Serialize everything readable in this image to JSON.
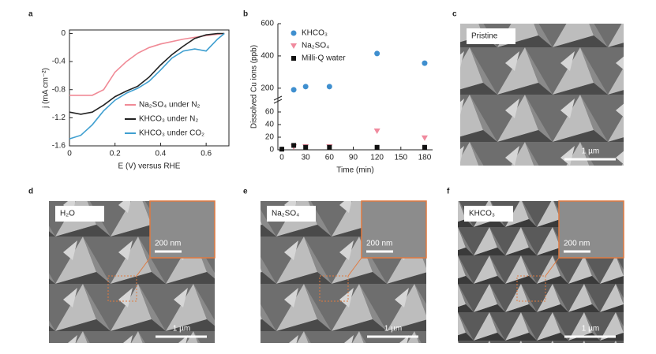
{
  "chart_data": [
    {
      "type": "line",
      "panel_label": "a",
      "xlabel": "E (V) versus RHE",
      "ylabel": "j (mA cm⁻²)",
      "xlim": [
        0,
        0.7
      ],
      "ylim": [
        -1.6,
        0.05
      ],
      "xticks": [
        0,
        0.2,
        0.4,
        0.6
      ],
      "yticks": [
        0,
        -0.4,
        -0.8,
        -1.2,
        -1.6
      ],
      "legend": "lower right",
      "series": [
        {
          "name": "Na₂SO₄ under N₂",
          "color": "#f08a96",
          "x": [
            0,
            0.1,
            0.15,
            0.2,
            0.25,
            0.3,
            0.35,
            0.4,
            0.5,
            0.6,
            0.68
          ],
          "values": [
            -0.88,
            -0.88,
            -0.8,
            -0.55,
            -0.4,
            -0.28,
            -0.2,
            -0.15,
            -0.08,
            -0.03,
            0
          ]
        },
        {
          "name": "KHCO₃ under N₂",
          "color": "#222222",
          "x": [
            0,
            0.05,
            0.1,
            0.15,
            0.2,
            0.25,
            0.3,
            0.35,
            0.4,
            0.45,
            0.5,
            0.55,
            0.6,
            0.65,
            0.68
          ],
          "values": [
            -1.12,
            -1.15,
            -1.12,
            -1.02,
            -0.9,
            -0.82,
            -0.75,
            -0.62,
            -0.45,
            -0.3,
            -0.18,
            -0.07,
            -0.02,
            0,
            0
          ]
        },
        {
          "name": "KHCO₃ under CO₂",
          "color": "#3f9fd0",
          "x": [
            0,
            0.05,
            0.1,
            0.15,
            0.2,
            0.25,
            0.3,
            0.35,
            0.4,
            0.45,
            0.5,
            0.55,
            0.6,
            0.65,
            0.68
          ],
          "values": [
            -1.5,
            -1.45,
            -1.3,
            -1.1,
            -0.95,
            -0.85,
            -0.78,
            -0.68,
            -0.52,
            -0.35,
            -0.25,
            -0.22,
            -0.25,
            -0.08,
            0
          ]
        }
      ]
    },
    {
      "type": "scatter",
      "panel_label": "b",
      "xlabel": "Time (min)",
      "ylabel": "Dissolved Cu ions (ppb)",
      "xlim": [
        -5,
        190
      ],
      "ylim": [
        0,
        600
      ],
      "ybreak": [
        70,
        170
      ],
      "xticks": [
        0,
        30,
        60,
        90,
        120,
        150,
        180
      ],
      "yticks": [
        0,
        20,
        40,
        60,
        200,
        400,
        600
      ],
      "legend": "upper left",
      "series": [
        {
          "name": "KHCO₃",
          "color": "#3f8fcf",
          "marker": "circle",
          "x": [
            15,
            30,
            60,
            120,
            180
          ],
          "values": [
            190,
            210,
            210,
            415,
            355
          ]
        },
        {
          "name": "Na₂SO₄",
          "color": "#f08a9e",
          "marker": "triangle",
          "x": [
            15,
            30,
            60,
            120,
            180
          ],
          "values": [
            5,
            5,
            5,
            30,
            19
          ]
        },
        {
          "name": "Milli-Q water",
          "color": "#111111",
          "marker": "square",
          "x": [
            0,
            15,
            30,
            60,
            120,
            180
          ],
          "values": [
            1,
            7,
            4,
            4,
            4,
            4
          ]
        }
      ]
    }
  ],
  "panels": [
    {
      "letter": "c",
      "label": "Pristine",
      "scale": "1 µm"
    },
    {
      "letter": "d",
      "label": "H₂O",
      "inset_scale": "200 nm",
      "scale": "1 µm"
    },
    {
      "letter": "e",
      "label": "Na₂SO₄",
      "inset_scale": "200 nm",
      "scale": "1 µm"
    },
    {
      "letter": "f",
      "label": "KHCO₃",
      "inset_scale": "200 nm",
      "scale": "1 µm"
    }
  ]
}
